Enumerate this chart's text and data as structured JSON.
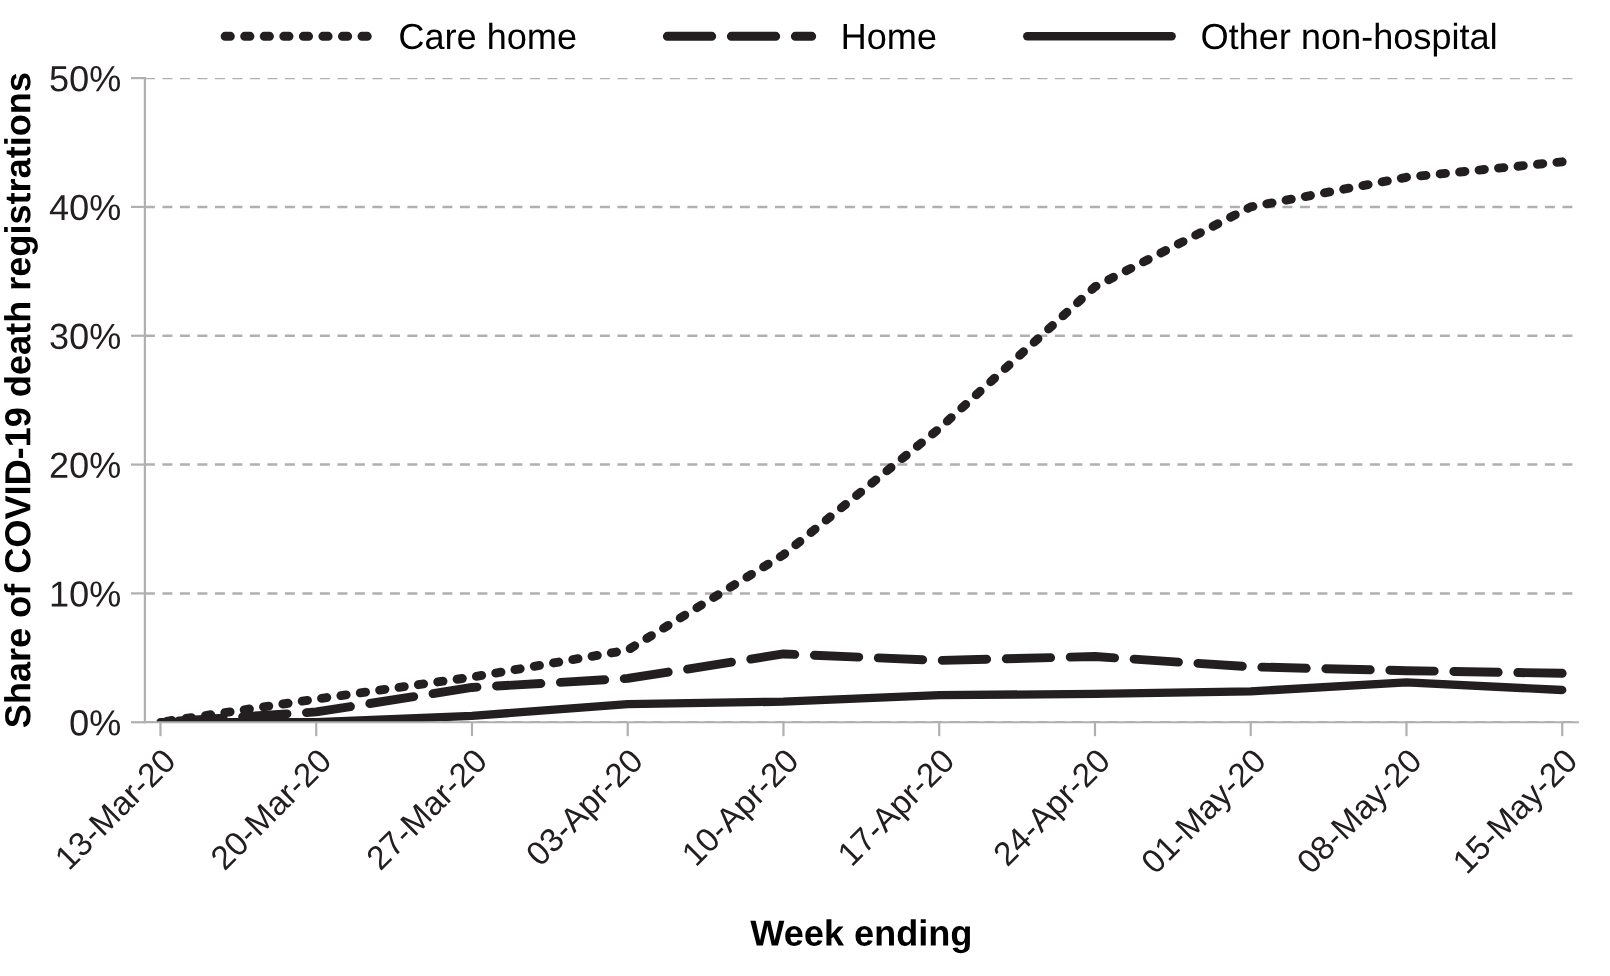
{
  "chart_data": {
    "type": "line",
    "xlabel": "Week ending",
    "ylabel": "Share of COVID-19 death registrations",
    "categories": [
      "13-Mar-20",
      "20-Mar-20",
      "27-Mar-20",
      "03-Apr-20",
      "10-Apr-20",
      "17-Apr-20",
      "24-Apr-20",
      "01-May-20",
      "08-May-20",
      "15-May-20"
    ],
    "series": [
      {
        "name": "Care home",
        "color": "#231f20",
        "line_style": "dotted",
        "values": [
          0,
          1.8,
          3.5,
          5.6,
          13,
          22.8,
          33.8,
          40,
          42.3,
          43.5
        ]
      },
      {
        "name": "Home",
        "color": "#231f20",
        "line_style": "dashed",
        "values": [
          0,
          0.8,
          2.7,
          3.4,
          5.3,
          4.8,
          5.1,
          4.3,
          4.0,
          3.8
        ]
      },
      {
        "name": "Other non-hospital",
        "color": "#231f20",
        "line_style": "solid",
        "values": [
          0,
          0,
          0.5,
          1.4,
          1.6,
          2.1,
          2.2,
          2.4,
          3.1,
          2.5
        ]
      }
    ],
    "ylim": [
      0,
      50
    ],
    "yticks": [
      {
        "value": 0,
        "label": "0%"
      },
      {
        "value": 10,
        "label": "10%"
      },
      {
        "value": 20,
        "label": "20%"
      },
      {
        "value": 30,
        "label": "30%"
      },
      {
        "value": 40,
        "label": "40%"
      },
      {
        "value": 50,
        "label": "50%"
      }
    ],
    "grid": "y",
    "legend": "top",
    "marker": "none"
  }
}
